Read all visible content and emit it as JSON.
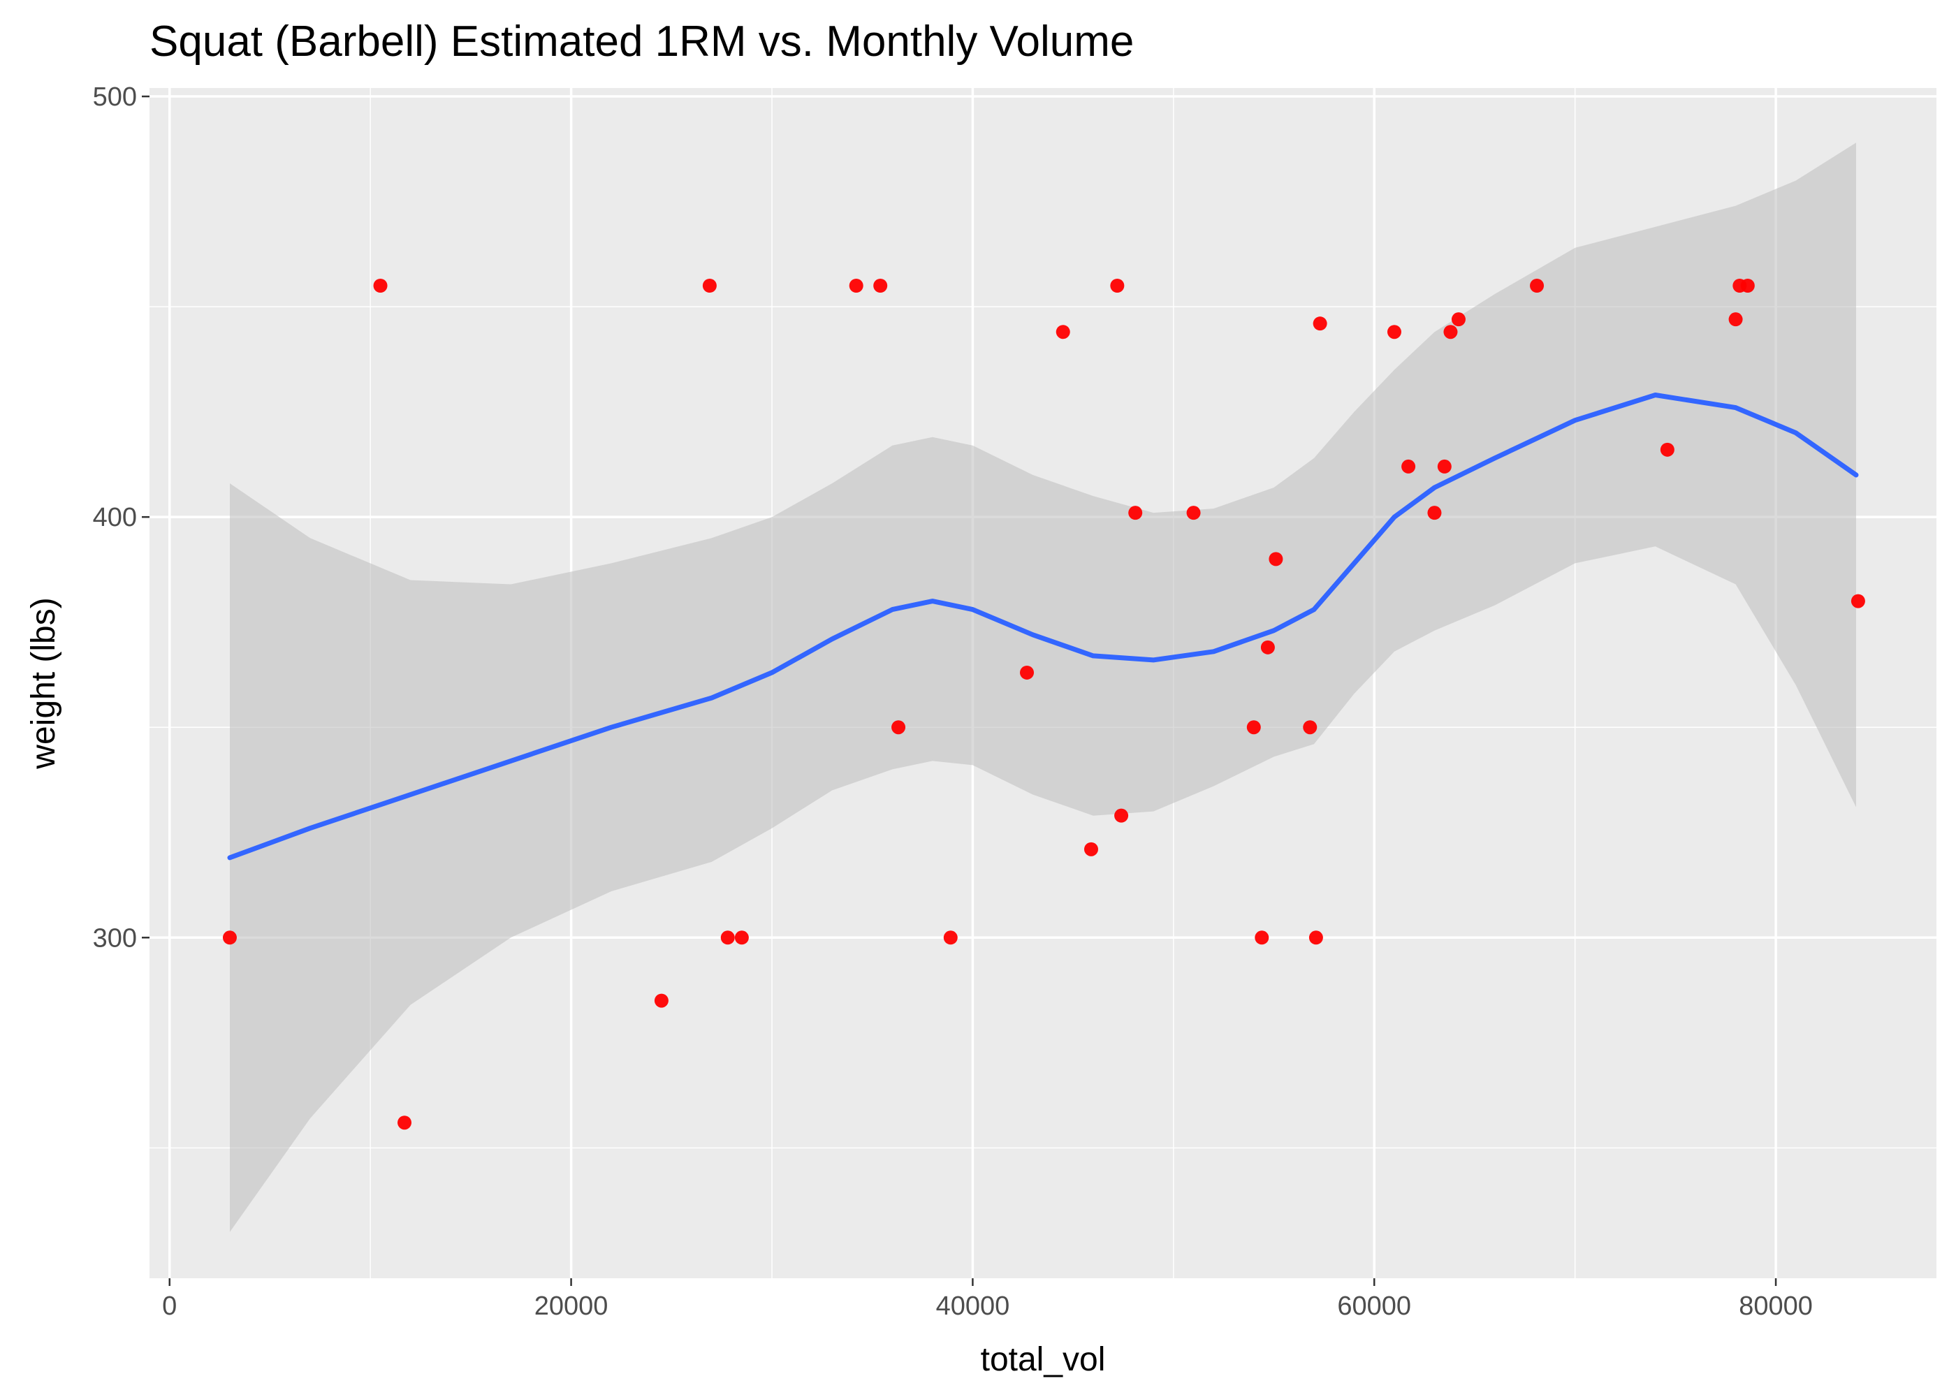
{
  "chart_data": {
    "type": "scatter",
    "title": "Squat (Barbell) Estimated 1RM vs. Monthly Volume",
    "xlabel": "total_vol",
    "ylabel": "weight (lbs)",
    "xlim": [
      -1000,
      88000
    ],
    "ylim": [
      219,
      502
    ],
    "x_ticks": [
      0,
      20000,
      40000,
      60000,
      80000
    ],
    "x_tick_labels": [
      "0",
      "20000",
      "40000",
      "60000",
      "80000"
    ],
    "y_ticks": [
      300,
      400,
      500
    ],
    "y_tick_labels": [
      "300",
      "400",
      "500"
    ],
    "x_minor_ticks": [
      10000,
      30000,
      50000,
      70000
    ],
    "y_minor_ticks": [
      250,
      350,
      450
    ],
    "grid": true,
    "legend": "none",
    "colors": {
      "panel": "#EBEBEB",
      "grid": "#FFFFFF",
      "point": "#FF0000",
      "smooth_line": "#3366FF",
      "ribbon": "#BEBEBE"
    },
    "points": [
      {
        "x": 3000,
        "y": 300
      },
      {
        "x": 10500,
        "y": 455
      },
      {
        "x": 11700,
        "y": 256
      },
      {
        "x": 24500,
        "y": 285
      },
      {
        "x": 26900,
        "y": 455
      },
      {
        "x": 27800,
        "y": 300
      },
      {
        "x": 28500,
        "y": 300
      },
      {
        "x": 34200,
        "y": 455
      },
      {
        "x": 35400,
        "y": 455
      },
      {
        "x": 36300,
        "y": 350
      },
      {
        "x": 38900,
        "y": 300
      },
      {
        "x": 42700,
        "y": 363
      },
      {
        "x": 44500,
        "y": 444
      },
      {
        "x": 45900,
        "y": 321
      },
      {
        "x": 47200,
        "y": 455
      },
      {
        "x": 47400,
        "y": 329
      },
      {
        "x": 48100,
        "y": 401
      },
      {
        "x": 51000,
        "y": 401
      },
      {
        "x": 54000,
        "y": 350
      },
      {
        "x": 54400,
        "y": 300
      },
      {
        "x": 54700,
        "y": 369
      },
      {
        "x": 55100,
        "y": 390
      },
      {
        "x": 56800,
        "y": 350
      },
      {
        "x": 57100,
        "y": 300
      },
      {
        "x": 57300,
        "y": 446
      },
      {
        "x": 61000,
        "y": 444
      },
      {
        "x": 61700,
        "y": 412
      },
      {
        "x": 63000,
        "y": 401
      },
      {
        "x": 63500,
        "y": 412
      },
      {
        "x": 63800,
        "y": 444
      },
      {
        "x": 64200,
        "y": 447
      },
      {
        "x": 68100,
        "y": 455
      },
      {
        "x": 74600,
        "y": 416
      },
      {
        "x": 78000,
        "y": 447
      },
      {
        "x": 78200,
        "y": 455
      },
      {
        "x": 78600,
        "y": 455
      },
      {
        "x": 84100,
        "y": 380
      }
    ],
    "smooth": {
      "method": "loess",
      "series": [
        {
          "name": "fit",
          "x": [
            3000,
            7000,
            12000,
            17000,
            22000,
            27000,
            30000,
            33000,
            36000,
            38000,
            40000,
            43000,
            46000,
            49000,
            52000,
            55000,
            57000,
            59000,
            61000,
            63000,
            66000,
            70000,
            74000,
            78000,
            81000,
            84000
          ],
          "y": [
            319,
            326,
            334,
            342,
            350,
            357,
            363,
            371,
            378,
            380,
            378,
            372,
            367,
            366,
            368,
            373,
            378,
            389,
            400,
            407,
            414,
            423,
            429,
            426,
            420,
            410
          ]
        },
        {
          "name": "upper",
          "x": [
            3000,
            7000,
            12000,
            17000,
            22000,
            27000,
            30000,
            33000,
            36000,
            38000,
            40000,
            43000,
            46000,
            49000,
            52000,
            55000,
            57000,
            59000,
            61000,
            63000,
            66000,
            70000,
            74000,
            78000,
            81000,
            84000
          ],
          "y": [
            408,
            395,
            385,
            384,
            389,
            395,
            400,
            408,
            417,
            419,
            417,
            410,
            405,
            401,
            402,
            407,
            414,
            425,
            435,
            444,
            453,
            464,
            469,
            474,
            480,
            489
          ]
        },
        {
          "name": "lower",
          "x": [
            3000,
            7000,
            12000,
            17000,
            22000,
            27000,
            30000,
            33000,
            36000,
            38000,
            40000,
            43000,
            46000,
            49000,
            52000,
            55000,
            57000,
            59000,
            61000,
            63000,
            66000,
            70000,
            74000,
            78000,
            81000,
            84000
          ],
          "y": [
            230,
            257,
            284,
            300,
            311,
            318,
            326,
            335,
            340,
            342,
            341,
            334,
            329,
            330,
            336,
            343,
            346,
            358,
            368,
            373,
            379,
            389,
            393,
            384,
            360,
            331
          ]
        }
      ]
    }
  }
}
